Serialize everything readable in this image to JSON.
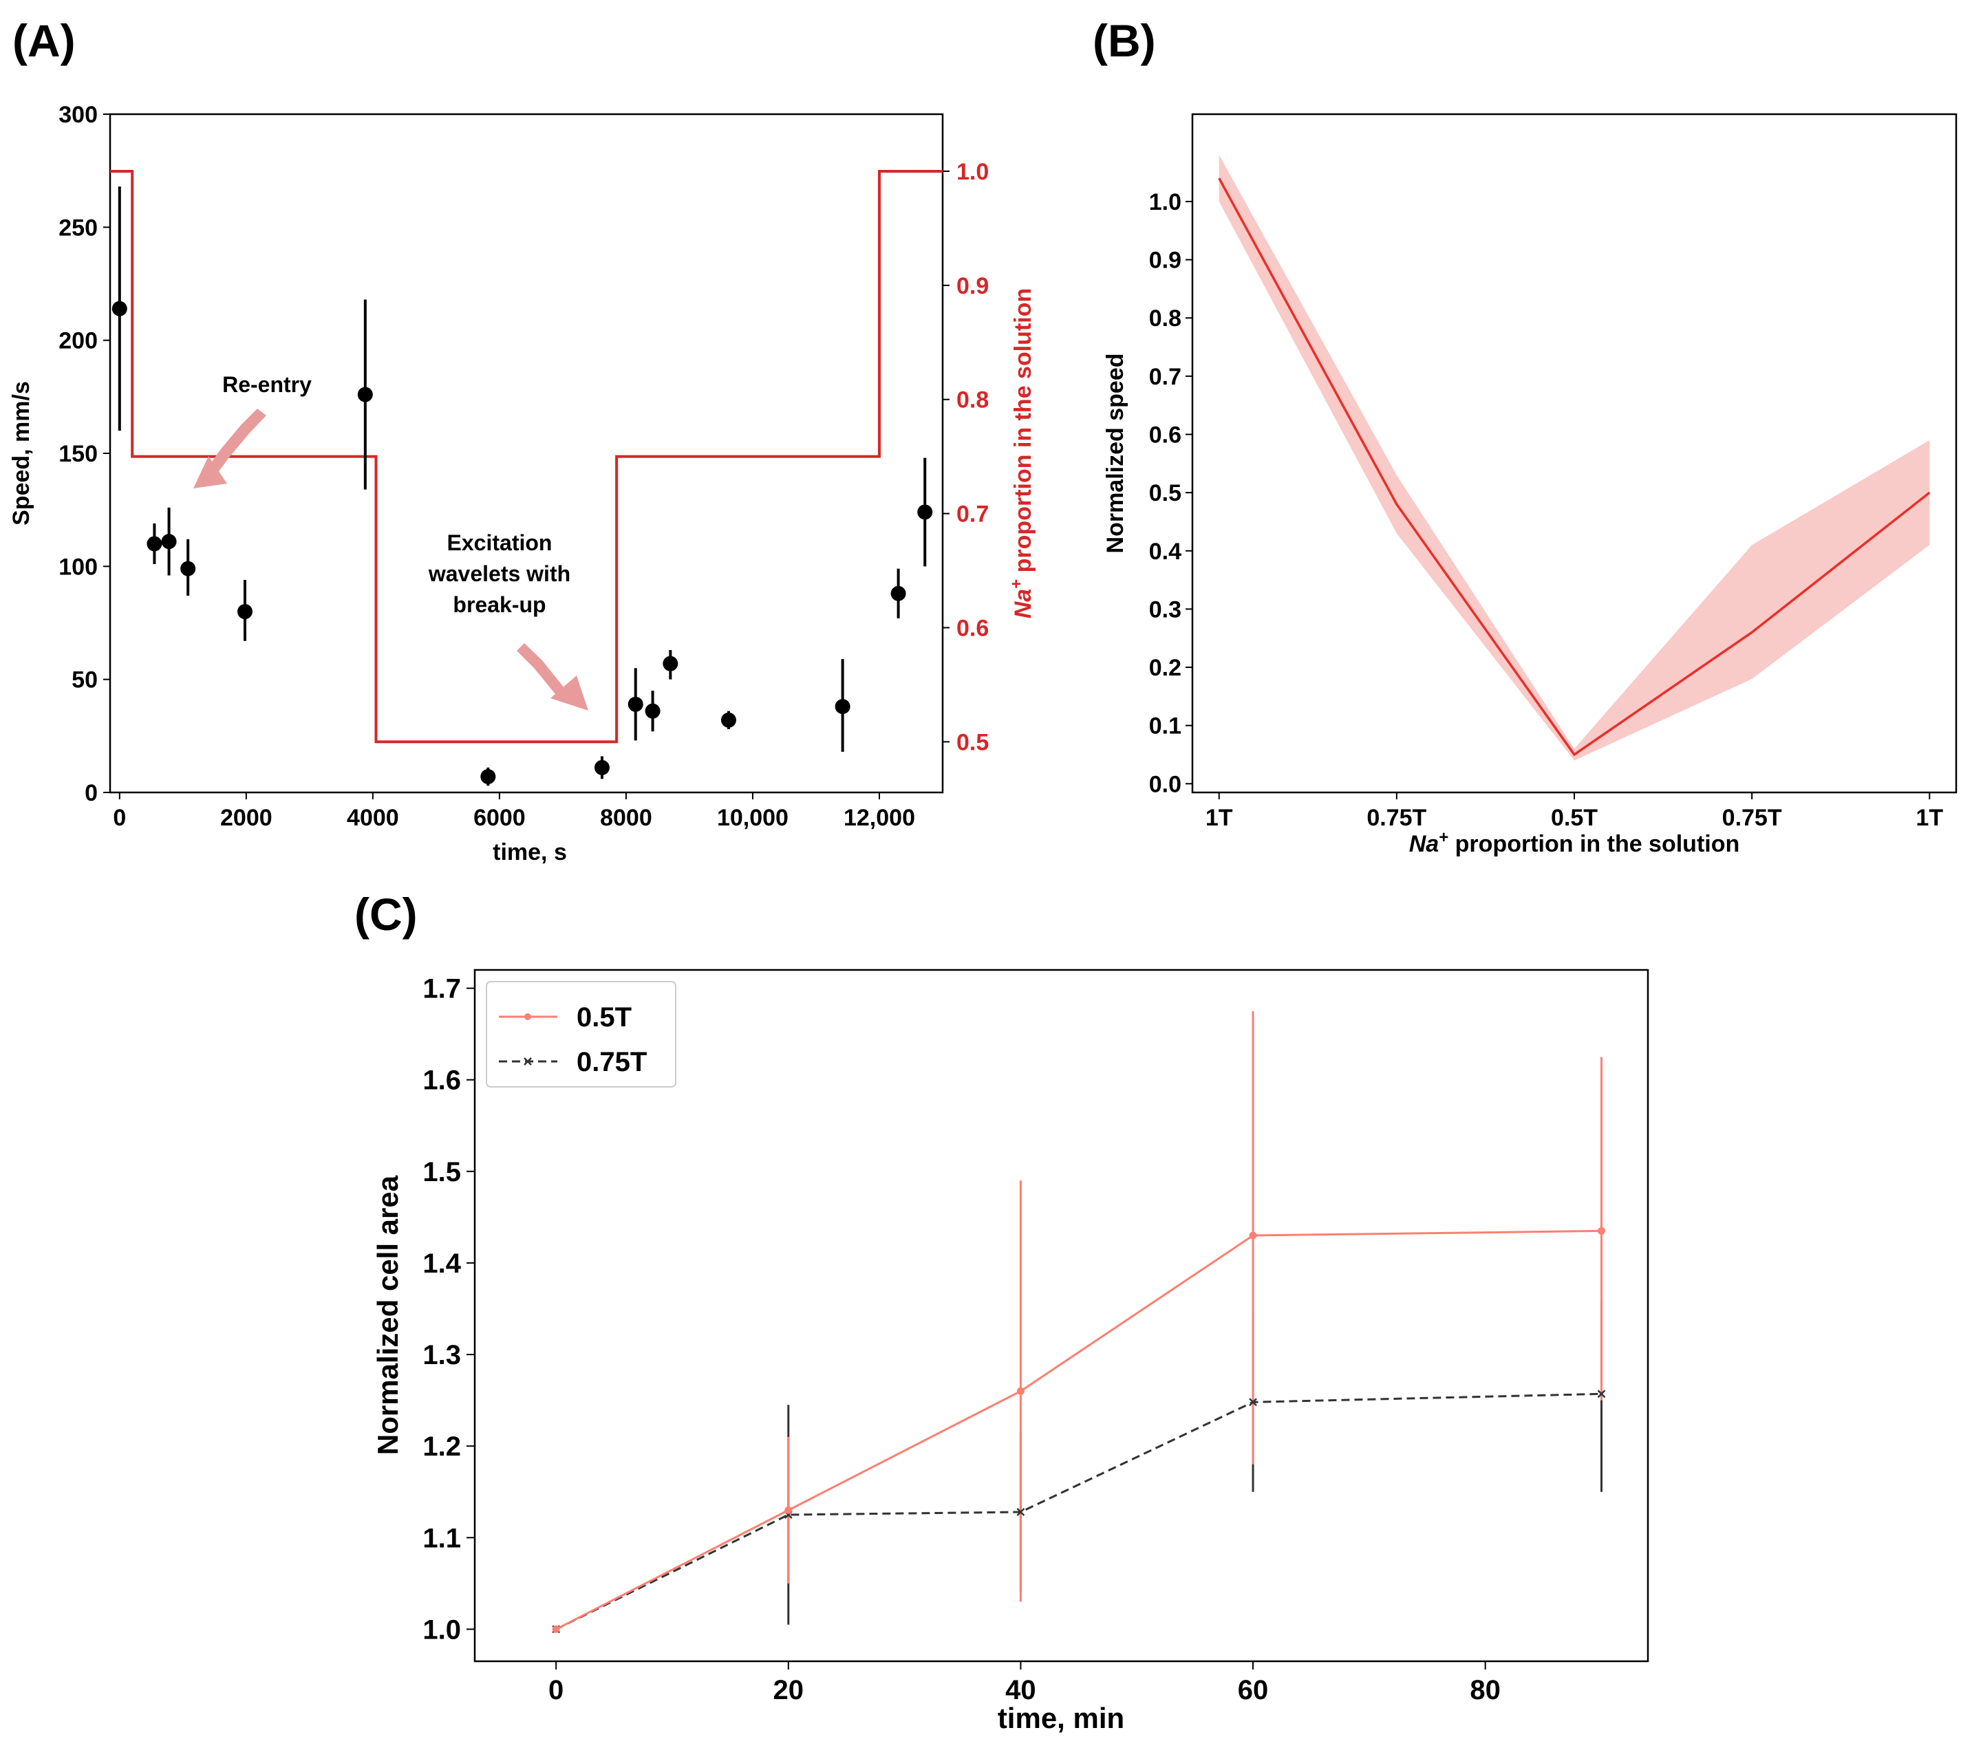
{
  "chart_data": [
    {
      "panel": "(A)",
      "type": "scatter",
      "xlabel": "time, s",
      "ylabel": "Speed, mm/s",
      "y2label_prefix": "Na",
      "y2label_sup": "+",
      "y2label_rest": " proportion in the solution",
      "xlim": [
        -150,
        13000
      ],
      "ylim": [
        0,
        300
      ],
      "y2lim": [
        0.4556,
        1.05
      ],
      "xticks": [
        0,
        2000,
        4000,
        6000,
        8000,
        10000,
        12000
      ],
      "xtick_labels": [
        "0",
        "2000",
        "4000",
        "6000",
        "8000",
        "10,000",
        "12,000"
      ],
      "yticks": [
        0,
        50,
        100,
        150,
        200,
        250,
        300
      ],
      "y2ticks": [
        0.5,
        0.6,
        0.7,
        0.8,
        0.9,
        1.0
      ],
      "y2tick_labels": [
        "0.5",
        "0.6",
        "0.7",
        "0.8",
        "0.9",
        "1.0"
      ],
      "series": [
        {
          "name": "Speed",
          "color": "#000000",
          "points": [
            {
              "x": 0,
              "y": 214,
              "low": 160,
              "high": 268
            },
            {
              "x": 550,
              "y": 110,
              "low": 101,
              "high": 119
            },
            {
              "x": 780,
              "y": 111,
              "low": 96,
              "high": 126
            },
            {
              "x": 1080,
              "y": 99,
              "low": 87,
              "high": 112
            },
            {
              "x": 1980,
              "y": 80,
              "low": 67,
              "high": 94
            },
            {
              "x": 3880,
              "y": 176,
              "low": 134,
              "high": 218
            },
            {
              "x": 5820,
              "y": 7,
              "low": 3,
              "high": 11
            },
            {
              "x": 7620,
              "y": 11,
              "low": 6,
              "high": 16
            },
            {
              "x": 8150,
              "y": 39,
              "low": 23,
              "high": 55
            },
            {
              "x": 8420,
              "y": 36,
              "low": 27,
              "high": 45
            },
            {
              "x": 8700,
              "y": 57,
              "low": 50,
              "high": 63
            },
            {
              "x": 9620,
              "y": 32,
              "low": 28,
              "high": 36
            },
            {
              "x": 11420,
              "y": 38,
              "low": 18,
              "high": 59
            },
            {
              "x": 12300,
              "y": 88,
              "low": 77,
              "high": 99
            },
            {
              "x": 12720,
              "y": 124,
              "low": 100,
              "high": 148
            }
          ]
        },
        {
          "name": "Na+ proportion",
          "axis": "y2",
          "color": "#d62728",
          "step_points": [
            {
              "x": -150,
              "y": 1.0
            },
            {
              "x": 200,
              "y": 1.0
            },
            {
              "x": 200,
              "y": 0.75
            },
            {
              "x": 4050,
              "y": 0.75
            },
            {
              "x": 4050,
              "y": 0.5
            },
            {
              "x": 7850,
              "y": 0.5
            },
            {
              "x": 7850,
              "y": 0.75
            },
            {
              "x": 12000,
              "y": 0.75
            },
            {
              "x": 12000,
              "y": 1.0
            },
            {
              "x": 13000,
              "y": 1.0
            }
          ]
        }
      ],
      "annotations": [
        {
          "lines": [
            "Re-entry"
          ]
        },
        {
          "lines": [
            "Excitation",
            "wavelets with",
            "break-up"
          ]
        }
      ]
    },
    {
      "panel": "(B)",
      "type": "area",
      "xlabel_prefix": "Na",
      "xlabel_sup": "+",
      "xlabel_rest": " proportion in the solution",
      "ylabel": "Normalized speed",
      "categories": [
        "1T",
        "0.75T",
        "0.5T",
        "0.75T",
        "1T"
      ],
      "xlim": [
        -0.15,
        4.15
      ],
      "ylim": [
        -0.015,
        1.15
      ],
      "yticks": [
        0.0,
        0.1,
        0.2,
        0.3,
        0.4,
        0.5,
        0.6,
        0.7,
        0.8,
        0.9,
        1.0
      ],
      "ytick_labels": [
        "0.0",
        "0.1",
        "0.2",
        "0.3",
        "0.4",
        "0.5",
        "0.6",
        "0.7",
        "0.8",
        "0.9",
        "1.0"
      ],
      "series": [
        {
          "name": "mean",
          "color": "#e8302a",
          "band_color": "#f4a6a4",
          "x": [
            0,
            1,
            2,
            3,
            4
          ],
          "values": [
            1.04,
            0.48,
            0.05,
            0.26,
            0.5
          ],
          "lower": [
            1.0,
            0.43,
            0.04,
            0.18,
            0.41
          ],
          "upper": [
            1.08,
            0.53,
            0.06,
            0.41,
            0.59
          ]
        }
      ]
    },
    {
      "panel": "(C)",
      "type": "line",
      "xlabel": "time, min",
      "ylabel": "Normalized cell area",
      "xlim": [
        -7,
        94
      ],
      "ylim": [
        0.965,
        1.72
      ],
      "xticks": [
        0,
        20,
        40,
        60,
        80
      ],
      "xtick_labels": [
        "0",
        "20",
        "40",
        "60",
        "80"
      ],
      "yticks": [
        1.0,
        1.1,
        1.2,
        1.3,
        1.4,
        1.5,
        1.6,
        1.7
      ],
      "ytick_labels": [
        "1.0",
        "1.1",
        "1.2",
        "1.3",
        "1.4",
        "1.5",
        "1.6",
        "1.7"
      ],
      "legend_position": "top-left",
      "series": [
        {
          "name": "0.5T",
          "color": "#fa8072",
          "dash": "solid",
          "marker": "dot",
          "x": [
            0,
            20,
            40,
            60,
            90
          ],
          "values": [
            1.0,
            1.13,
            1.26,
            1.43,
            1.435
          ],
          "err_low": [
            1.0,
            1.05,
            1.03,
            1.18,
            1.25
          ],
          "err_high": [
            1.0,
            1.21,
            1.49,
            1.675,
            1.625
          ]
        },
        {
          "name": "0.75T",
          "color": "#333333",
          "dash": "dashed",
          "marker": "x",
          "x": [
            0,
            20,
            40,
            60,
            90
          ],
          "values": [
            1.0,
            1.125,
            1.128,
            1.248,
            1.257
          ],
          "err_low": [
            1.0,
            1.005,
            1.04,
            1.15,
            1.15
          ],
          "err_high": [
            1.0,
            1.245,
            1.215,
            1.345,
            1.36
          ]
        }
      ]
    }
  ]
}
